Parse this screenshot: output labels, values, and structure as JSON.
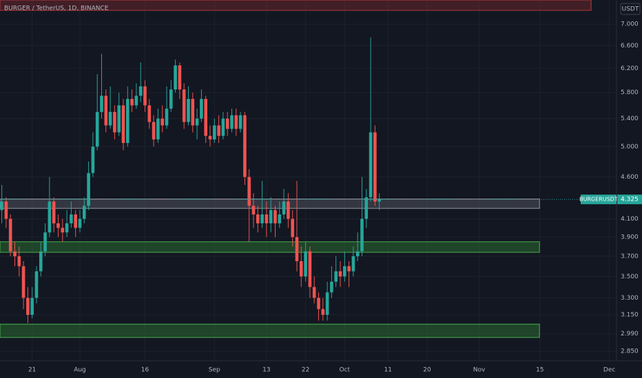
{
  "chart_data": {
    "type": "candlestick",
    "title": "BURGER / TetherUS, 1D, BINANCE",
    "currency": "USDT",
    "symbol": "BURGERUSDT",
    "last_price": 4.325,
    "log_scale": true,
    "grid": true,
    "up_color": "#26a69a",
    "down_color": "#ef5350",
    "ylim": [
      2.776,
      7.48
    ],
    "yticks": [
      {
        "value": 7,
        "label": "7.000"
      },
      {
        "value": 6.6,
        "label": "6.600"
      },
      {
        "value": 6.2,
        "label": "6.200"
      },
      {
        "value": 5.8,
        "label": "5.800"
      },
      {
        "value": 5.4,
        "label": "5.400"
      },
      {
        "value": 5,
        "label": "5.000"
      },
      {
        "value": 4.6,
        "label": "4.600"
      },
      {
        "value": 4.1,
        "label": "4.100"
      },
      {
        "value": 3.9,
        "label": "3.900"
      },
      {
        "value": 3.7,
        "label": "3.700"
      },
      {
        "value": 3.5,
        "label": "3.500"
      },
      {
        "value": 3.3,
        "label": "3.300"
      },
      {
        "value": 3.15,
        "label": "3.150"
      },
      {
        "value": 2.99,
        "label": "2.990"
      },
      {
        "value": 2.85,
        "label": "2.850"
      }
    ],
    "xlim": [
      -0.41,
      141.65
    ],
    "xticks": [
      {
        "value": 7,
        "label": "21"
      },
      {
        "value": 18,
        "label": "Aug"
      },
      {
        "value": 33,
        "label": "16"
      },
      {
        "value": 49,
        "label": "Sep"
      },
      {
        "value": 61,
        "label": "13"
      },
      {
        "value": 70,
        "label": "22"
      },
      {
        "value": 79,
        "label": "Oct"
      },
      {
        "value": 89,
        "label": "11"
      },
      {
        "value": 98,
        "label": "20"
      },
      {
        "value": 110,
        "label": "Nov"
      },
      {
        "value": 124,
        "label": "15"
      },
      {
        "value": 140,
        "label": "Dec"
      }
    ],
    "zones": [
      {
        "low": 7.27,
        "high": 7.48,
        "end": 135.8,
        "color": "#7a2a2e"
      },
      {
        "low": 4.22,
        "high": 4.33,
        "end": 123.9,
        "color": "#5d606b"
      },
      {
        "low": 3.74,
        "high": 3.85,
        "end": 123.9,
        "color": "#2e7d32"
      },
      {
        "low": 2.96,
        "high": 3.07,
        "end": 123.9,
        "color": "#2e7d32"
      }
    ],
    "ohlc": [
      [
        4.2,
        4.5,
        4.05,
        4.3
      ],
      [
        4.3,
        4.35,
        4.0,
        4.1
      ],
      [
        4.1,
        4.15,
        3.7,
        3.75
      ],
      [
        3.75,
        3.85,
        3.6,
        3.7
      ],
      [
        3.7,
        3.8,
        3.5,
        3.6
      ],
      [
        3.6,
        3.65,
        3.2,
        3.3
      ],
      [
        3.3,
        3.4,
        3.08,
        3.15
      ],
      [
        3.15,
        3.4,
        3.12,
        3.3
      ],
      [
        3.3,
        3.6,
        3.25,
        3.55
      ],
      [
        3.55,
        3.85,
        3.5,
        3.75
      ],
      [
        3.75,
        4.05,
        3.7,
        3.95
      ],
      [
        3.95,
        4.6,
        3.9,
        4.3
      ],
      [
        4.3,
        4.35,
        3.95,
        4.05
      ],
      [
        4.05,
        4.15,
        3.9,
        4.0
      ],
      [
        4.0,
        4.1,
        3.85,
        3.95
      ],
      [
        3.95,
        4.2,
        3.9,
        4.05
      ],
      [
        4.05,
        4.3,
        4.0,
        4.15
      ],
      [
        4.15,
        4.2,
        3.9,
        4.0
      ],
      [
        4.0,
        4.2,
        3.95,
        4.1
      ],
      [
        4.1,
        4.35,
        4.05,
        4.25
      ],
      [
        4.25,
        4.8,
        4.2,
        4.65
      ],
      [
        4.65,
        5.2,
        4.6,
        5.0
      ],
      [
        5.0,
        6.1,
        4.95,
        5.5
      ],
      [
        5.5,
        6.45,
        5.4,
        5.75
      ],
      [
        5.75,
        5.85,
        5.2,
        5.3
      ],
      [
        5.3,
        5.9,
        5.25,
        5.5
      ],
      [
        5.5,
        5.6,
        5.1,
        5.2
      ],
      [
        5.2,
        5.8,
        5.15,
        5.6
      ],
      [
        5.6,
        5.7,
        4.95,
        5.05
      ],
      [
        5.05,
        5.9,
        5.0,
        5.7
      ],
      [
        5.7,
        5.85,
        5.5,
        5.6
      ],
      [
        5.6,
        5.95,
        5.55,
        5.75
      ],
      [
        5.75,
        6.3,
        5.65,
        5.9
      ],
      [
        5.9,
        6.0,
        5.5,
        5.6
      ],
      [
        5.6,
        5.7,
        5.25,
        5.35
      ],
      [
        5.35,
        5.45,
        5.0,
        5.1
      ],
      [
        5.1,
        5.55,
        5.05,
        5.4
      ],
      [
        5.4,
        5.6,
        5.2,
        5.3
      ],
      [
        5.3,
        5.9,
        5.25,
        5.55
      ],
      [
        5.55,
        6.0,
        5.5,
        5.85
      ],
      [
        5.85,
        6.35,
        5.8,
        6.25
      ],
      [
        6.25,
        6.3,
        5.7,
        5.85
      ],
      [
        5.85,
        5.95,
        5.25,
        5.35
      ],
      [
        5.35,
        5.9,
        5.3,
        5.7
      ],
      [
        5.7,
        5.8,
        5.2,
        5.3
      ],
      [
        5.3,
        5.55,
        5.1,
        5.4
      ],
      [
        5.4,
        5.85,
        5.35,
        5.7
      ],
      [
        5.7,
        5.75,
        5.05,
        5.15
      ],
      [
        5.15,
        5.3,
        5.0,
        5.1
      ],
      [
        5.1,
        5.4,
        5.05,
        5.3
      ],
      [
        5.3,
        5.45,
        5.05,
        5.15
      ],
      [
        5.15,
        5.5,
        5.1,
        5.4
      ],
      [
        5.4,
        5.5,
        5.15,
        5.25
      ],
      [
        5.25,
        5.55,
        5.2,
        5.45
      ],
      [
        5.45,
        5.55,
        5.15,
        5.25
      ],
      [
        5.25,
        5.5,
        5.2,
        5.45
      ],
      [
        5.45,
        5.5,
        4.5,
        4.6
      ],
      [
        4.6,
        4.7,
        3.85,
        4.25
      ],
      [
        4.25,
        4.4,
        4.0,
        4.15
      ],
      [
        4.15,
        4.25,
        3.95,
        4.05
      ],
      [
        4.05,
        4.55,
        4.0,
        4.15
      ],
      [
        4.15,
        4.3,
        3.9,
        4.05
      ],
      [
        4.05,
        4.35,
        3.95,
        4.2
      ],
      [
        4.2,
        4.25,
        3.9,
        4.05
      ],
      [
        4.05,
        4.3,
        4.0,
        4.15
      ],
      [
        4.15,
        4.45,
        4.1,
        4.3
      ],
      [
        4.3,
        4.4,
        4.0,
        4.1
      ],
      [
        4.1,
        4.2,
        3.8,
        3.9
      ],
      [
        3.9,
        4.55,
        3.55,
        3.65
      ],
      [
        3.65,
        3.8,
        3.4,
        3.5
      ],
      [
        3.5,
        3.85,
        3.45,
        3.75
      ],
      [
        3.75,
        3.8,
        3.3,
        3.4
      ],
      [
        3.4,
        3.5,
        3.25,
        3.3
      ],
      [
        3.3,
        3.35,
        3.1,
        3.2
      ],
      [
        3.2,
        3.3,
        3.1,
        3.15
      ],
      [
        3.15,
        3.45,
        3.1,
        3.35
      ],
      [
        3.35,
        3.6,
        3.3,
        3.45
      ],
      [
        3.45,
        3.7,
        3.4,
        3.55
      ],
      [
        3.55,
        3.65,
        3.4,
        3.5
      ],
      [
        3.5,
        3.75,
        3.45,
        3.6
      ],
      [
        3.6,
        3.65,
        3.4,
        3.55
      ],
      [
        3.55,
        3.8,
        3.5,
        3.7
      ],
      [
        3.7,
        3.95,
        3.65,
        3.75
      ],
      [
        3.75,
        4.6,
        3.7,
        4.1
      ],
      [
        4.1,
        4.45,
        4.0,
        4.35
      ],
      [
        4.35,
        6.75,
        4.3,
        5.2
      ],
      [
        5.2,
        5.3,
        4.25,
        4.3
      ],
      [
        4.3,
        4.4,
        4.2,
        4.325
      ]
    ]
  }
}
